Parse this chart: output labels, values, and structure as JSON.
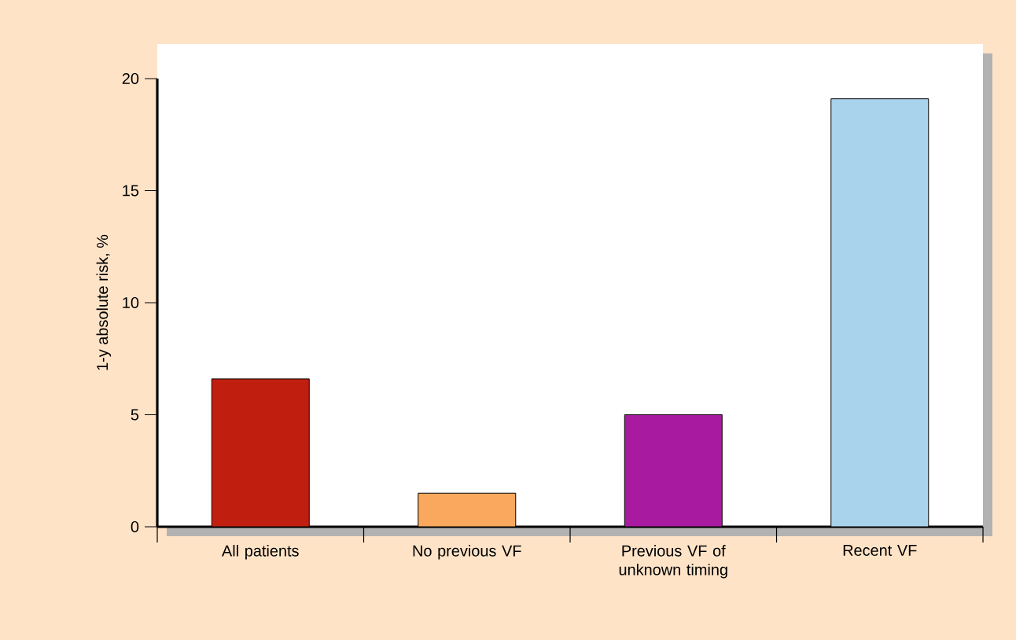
{
  "chart_data": {
    "type": "bar",
    "ylabel": "1-y absolute risk, %",
    "categories": [
      "All patients",
      "No previous VF",
      "Previous VF of unknown timing",
      "Recent VF"
    ],
    "values": [
      6.6,
      1.5,
      5.0,
      19.1
    ],
    "colors": [
      "#c01f10",
      "#f9a85e",
      "#a81aa0",
      "#a9d2ec"
    ],
    "ylim": [
      0,
      20
    ],
    "yticks": [
      0,
      5,
      10,
      15,
      20
    ],
    "grid": false
  }
}
